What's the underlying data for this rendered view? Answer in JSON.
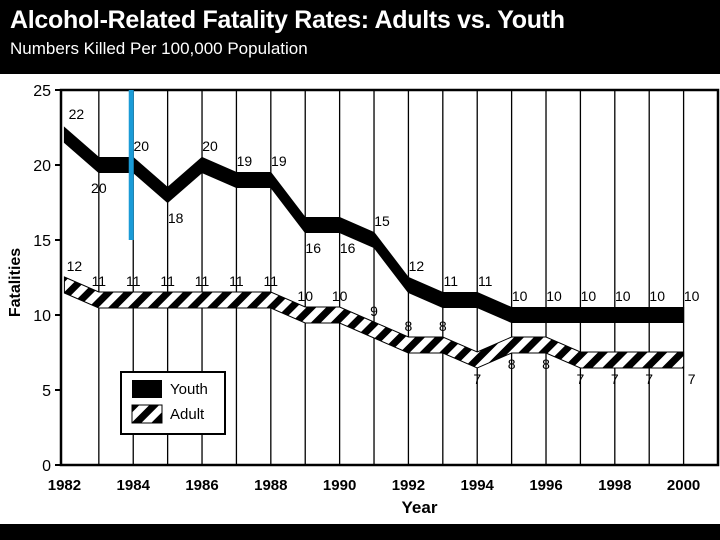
{
  "header": {
    "title": "Alcohol-Related Fatality Rates: Adults vs. Youth",
    "subtitle": "Numbers Killed Per 100,000 Population"
  },
  "colors": {
    "background": "#ffffff",
    "header": "#000000",
    "marker": "#1a9bd7"
  },
  "chart_data": {
    "type": "line",
    "title": "Alcohol-Related Fatality Rates: Adults vs. Youth",
    "subtitle": "Numbers Killed Per 100,000 Population",
    "xlabel": "Year",
    "ylabel": "Fatalities",
    "xlim": [
      1981.9,
      2001
    ],
    "ylim": [
      0,
      25
    ],
    "yticks": [
      0,
      5,
      10,
      15,
      20,
      25
    ],
    "xticks": [
      1982,
      1984,
      1986,
      1988,
      1990,
      1992,
      1994,
      1996,
      1998,
      2000
    ],
    "x": [
      1982,
      1983,
      1984,
      1985,
      1986,
      1987,
      1988,
      1989,
      1990,
      1991,
      1992,
      1993,
      1994,
      1995,
      1996,
      1997,
      1998,
      1999,
      2000
    ],
    "series": [
      {
        "name": "Youth",
        "style": "solid",
        "values": [
          22,
          20,
          20,
          18,
          20,
          19,
          19,
          16,
          16,
          15,
          12,
          11,
          11,
          10,
          10,
          10,
          10,
          10,
          10
        ]
      },
      {
        "name": "Adult",
        "style": "striped",
        "values": [
          12,
          11,
          11,
          11,
          11,
          11,
          11,
          10,
          10,
          9,
          8,
          8,
          7,
          8,
          8,
          7,
          7,
          7,
          7
        ]
      }
    ],
    "labels": {
      "youth": [
        "22",
        "20",
        "20",
        "18",
        "20",
        "19",
        "19",
        "16",
        "16",
        "15",
        "12",
        "11",
        "11",
        "10",
        "10",
        "10",
        "10",
        "10",
        "10"
      ],
      "adult": [
        "12",
        "11",
        "11",
        "11",
        "11",
        "11",
        "11",
        "10",
        "10",
        "9",
        "8",
        "8",
        "7",
        "8",
        "8",
        "7",
        "7",
        "7",
        "7"
      ]
    },
    "highlight_year": 1984,
    "legend_position": "bottom-left",
    "legend": [
      "Youth",
      "Adult"
    ]
  }
}
